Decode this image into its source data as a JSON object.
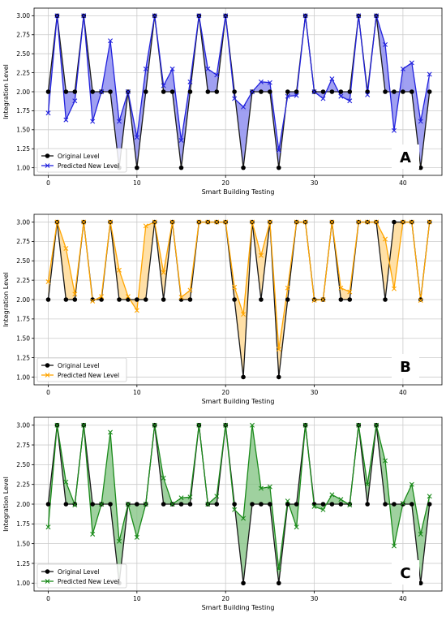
{
  "chart_data": [
    {
      "type": "line",
      "panel_letter": "A",
      "predicted_color": "#2222dd",
      "fill_color": "#8080ee",
      "xlabel": "Smart Building Testing",
      "ylabel": "Integration Level",
      "xlim": [
        -1.6,
        44.4
      ],
      "ylim": [
        0.9,
        3.1
      ],
      "xticks": [
        0,
        10,
        20,
        30,
        40
      ],
      "yticks": [
        1.0,
        1.25,
        1.5,
        1.75,
        2.0,
        2.25,
        2.5,
        2.75,
        3.0
      ],
      "grid": true,
      "legend_position": "lower-left",
      "series": [
        {
          "name": "Original Level",
          "values": [
            2,
            3,
            2,
            2,
            3,
            2,
            2,
            2,
            1,
            2,
            1,
            2,
            3,
            2,
            2,
            1,
            2,
            3,
            2,
            2,
            3,
            2,
            1,
            2,
            2,
            2,
            1,
            2,
            2,
            3,
            2,
            2,
            2,
            2,
            2,
            3,
            2,
            3,
            2,
            2,
            2,
            2,
            1,
            2
          ]
        },
        {
          "name": "Predicted New Level",
          "values": [
            1.72,
            3.0,
            1.63,
            1.88,
            3.0,
            1.61,
            2.0,
            2.67,
            1.61,
            2.0,
            1.4,
            2.3,
            3.0,
            2.08,
            2.3,
            1.36,
            2.13,
            3.0,
            2.3,
            2.22,
            3.0,
            1.91,
            1.8,
            2.0,
            2.13,
            2.12,
            1.23,
            1.94,
            1.95,
            3.0,
            2.0,
            1.91,
            2.17,
            1.94,
            1.88,
            3.0,
            1.96,
            3.0,
            2.62,
            1.49,
            2.3,
            2.38,
            1.61,
            2.23
          ]
        }
      ]
    },
    {
      "type": "line",
      "panel_letter": "B",
      "predicted_color": "#ffa500",
      "fill_color": "#ffd58a",
      "xlabel": "Smart Building Testing",
      "ylabel": "Integration Level",
      "xlim": [
        -1.6,
        44.4
      ],
      "ylim": [
        0.9,
        3.1
      ],
      "xticks": [
        0,
        10,
        20,
        30,
        40
      ],
      "yticks": [
        1.0,
        1.25,
        1.5,
        1.75,
        2.0,
        2.25,
        2.5,
        2.75,
        3.0
      ],
      "grid": true,
      "legend_position": "lower-left",
      "series": [
        {
          "name": "Original Level",
          "values": [
            2,
            3,
            2,
            2,
            3,
            2,
            2,
            3,
            2,
            2,
            2,
            2,
            3,
            2,
            3,
            2,
            2,
            3,
            3,
            3,
            3,
            2,
            1,
            3,
            2,
            3,
            1,
            2,
            3,
            3,
            2,
            2,
            3,
            2,
            2,
            3,
            3,
            3,
            2,
            3,
            3,
            3,
            2,
            3
          ]
        },
        {
          "name": "Predicted New Level",
          "values": [
            2.23,
            3.0,
            2.66,
            2.07,
            3.0,
            1.98,
            2.04,
            3.0,
            2.38,
            2.04,
            1.86,
            2.95,
            3.0,
            2.35,
            3.0,
            2.03,
            2.12,
            3.0,
            3.0,
            3.0,
            3.0,
            2.16,
            1.81,
            3.0,
            2.57,
            3.0,
            1.36,
            2.15,
            3.0,
            3.0,
            1.99,
            2.0,
            3.0,
            2.15,
            2.1,
            3.0,
            3.0,
            3.0,
            2.78,
            2.14,
            3.0,
            3.0,
            1.99,
            3.0
          ]
        }
      ]
    },
    {
      "type": "line",
      "panel_letter": "C",
      "predicted_color": "#1a8a1a",
      "fill_color": "#7fc27f",
      "xlabel": "Smart Building Testing",
      "ylabel": "Integration Level",
      "xlim": [
        -1.6,
        44.4
      ],
      "ylim": [
        0.9,
        3.1
      ],
      "xticks": [
        0,
        10,
        20,
        30,
        40
      ],
      "yticks": [
        1.0,
        1.25,
        1.5,
        1.75,
        2.0,
        2.25,
        2.5,
        2.75,
        3.0
      ],
      "grid": true,
      "legend_position": "lower-left",
      "series": [
        {
          "name": "Original Level",
          "values": [
            2,
            3,
            2,
            2,
            3,
            2,
            2,
            2,
            1,
            2,
            2,
            2,
            3,
            2,
            2,
            2,
            2,
            3,
            2,
            2,
            3,
            2,
            1,
            2,
            2,
            2,
            1,
            2,
            2,
            3,
            2,
            2,
            2,
            2,
            2,
            3,
            2,
            3,
            2,
            2,
            2,
            2,
            1,
            2
          ]
        },
        {
          "name": "Predicted New Level",
          "values": [
            1.71,
            3.0,
            2.28,
            1.99,
            3.0,
            1.62,
            2.0,
            2.91,
            1.53,
            2.0,
            1.58,
            2.0,
            3.0,
            2.33,
            2.0,
            2.08,
            2.09,
            3.0,
            2.0,
            2.1,
            3.0,
            1.93,
            1.82,
            3.0,
            2.2,
            2.22,
            1.18,
            2.04,
            1.71,
            3.0,
            1.97,
            1.93,
            2.12,
            2.06,
            1.99,
            3.0,
            2.25,
            3.0,
            2.55,
            1.47,
            2.01,
            2.25,
            1.62,
            2.1
          ]
        }
      ]
    }
  ]
}
